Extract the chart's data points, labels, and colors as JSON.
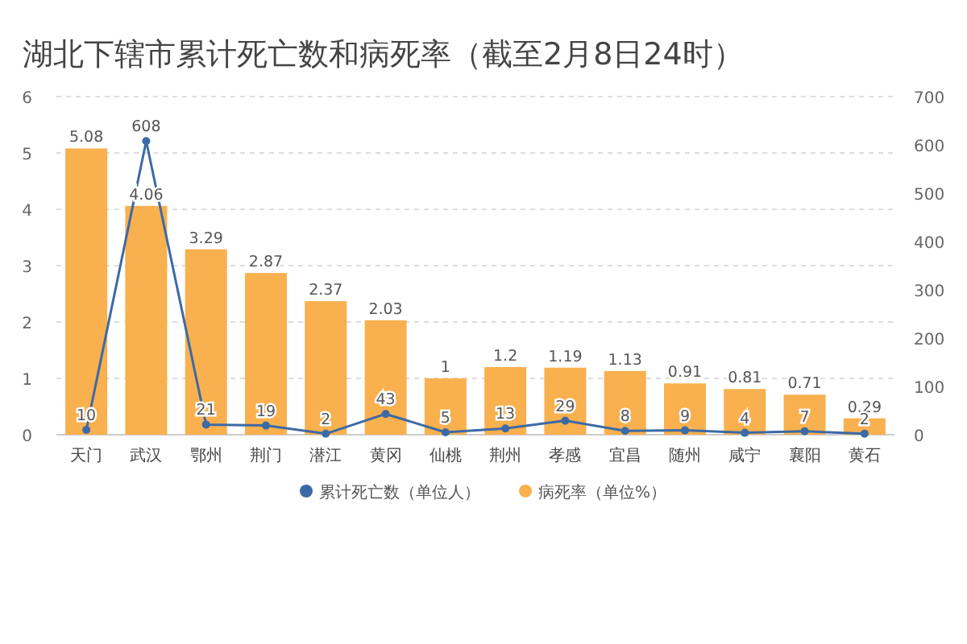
{
  "chart_data": {
    "type": "bar",
    "title": "湖北下辖市累计死亡数和病死率（截至2月8日24时）",
    "categories": [
      "天门",
      "武汉",
      "鄂州",
      "荆门",
      "潜江",
      "黄冈",
      "仙桃",
      "荆州",
      "孝感",
      "宜昌",
      "随州",
      "咸宁",
      "襄阳",
      "黄石"
    ],
    "series": [
      {
        "name": "累计死亡数（单位人）",
        "type": "line",
        "axis": "y2",
        "color": "#3c6aa6",
        "values": [
          10,
          608,
          21,
          19,
          2,
          43,
          5,
          13,
          29,
          8,
          9,
          4,
          7,
          2
        ]
      },
      {
        "name": "病死率（单位%）",
        "color": "#f9b04e",
        "values": [
          5.08,
          4.06,
          3.29,
          2.87,
          2.37,
          2.03,
          1.0,
          1.2,
          1.19,
          1.13,
          0.91,
          0.81,
          0.71,
          0.29
        ]
      }
    ],
    "ylim": [
      0,
      6
    ],
    "yticks": [
      0,
      1,
      2,
      3,
      4,
      5,
      6
    ],
    "y2lim": [
      0,
      700
    ],
    "y2ticks": [
      0,
      100,
      200,
      300,
      400,
      500,
      600,
      700
    ],
    "grid": "y",
    "legend": "bottom",
    "marker": "circle",
    "data_labels": true
  }
}
